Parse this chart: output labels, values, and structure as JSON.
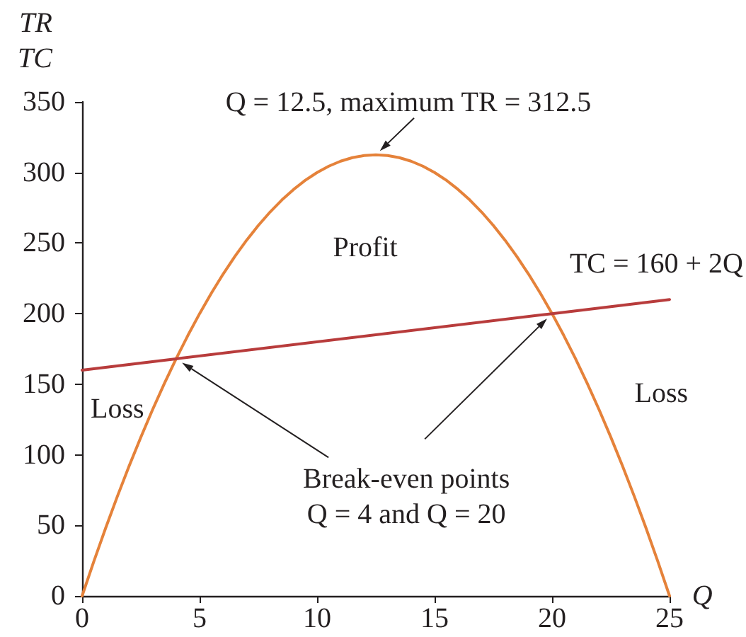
{
  "chart_data": {
    "type": "line",
    "xlabel": "Q",
    "ylabel": "TR\nTC",
    "xlim": [
      0,
      25
    ],
    "ylim": [
      0,
      350
    ],
    "xticks": [
      0,
      5,
      10,
      15,
      20,
      25
    ],
    "yticks": [
      0,
      50,
      100,
      150,
      200,
      250,
      300,
      350
    ],
    "marker": "none",
    "series": [
      {
        "color": "#e5823a",
        "x": [
          0,
          0.5,
          1,
          1.5,
          2,
          2.5,
          3,
          3.5,
          4,
          4.5,
          5,
          5.5,
          6,
          6.5,
          7,
          7.5,
          8,
          8.5,
          9,
          9.5,
          10,
          10.5,
          11,
          11.5,
          12,
          12.5,
          13,
          13.5,
          14,
          14.5,
          15,
          15.5,
          16,
          16.5,
          17,
          17.5,
          18,
          18.5,
          19,
          19.5,
          20,
          20.5,
          21,
          21.5,
          22,
          22.5,
          23,
          23.5,
          24,
          24.5,
          25
        ],
        "values": [
          0,
          24.5,
          48,
          70.5,
          92,
          112.5,
          132,
          150.5,
          168,
          184.5,
          200,
          214.5,
          228,
          240.5,
          252,
          262.5,
          272,
          280.5,
          288,
          294.5,
          300,
          304.5,
          308,
          310.5,
          312,
          312.5,
          312,
          310.5,
          308,
          304.5,
          300,
          294.5,
          288,
          280.5,
          272,
          262.5,
          252,
          240.5,
          228,
          214.5,
          200,
          184.5,
          168,
          150.5,
          132,
          112.5,
          92,
          70.5,
          48,
          24.5,
          0
        ]
      },
      {
        "name": "TC = 160 + 2Q",
        "color": "#b83c3c",
        "x": [
          0,
          4,
          20,
          25
        ],
        "values": [
          160,
          168,
          200,
          210
        ]
      }
    ],
    "annotations": [
      {
        "text": "Q = 12.5, maximum TR = 312.5",
        "x": 12.5,
        "y": 312.5
      },
      "Profit",
      "Loss",
      "Loss",
      "Break-even points\nQ = 4 and Q = 20"
    ]
  }
}
